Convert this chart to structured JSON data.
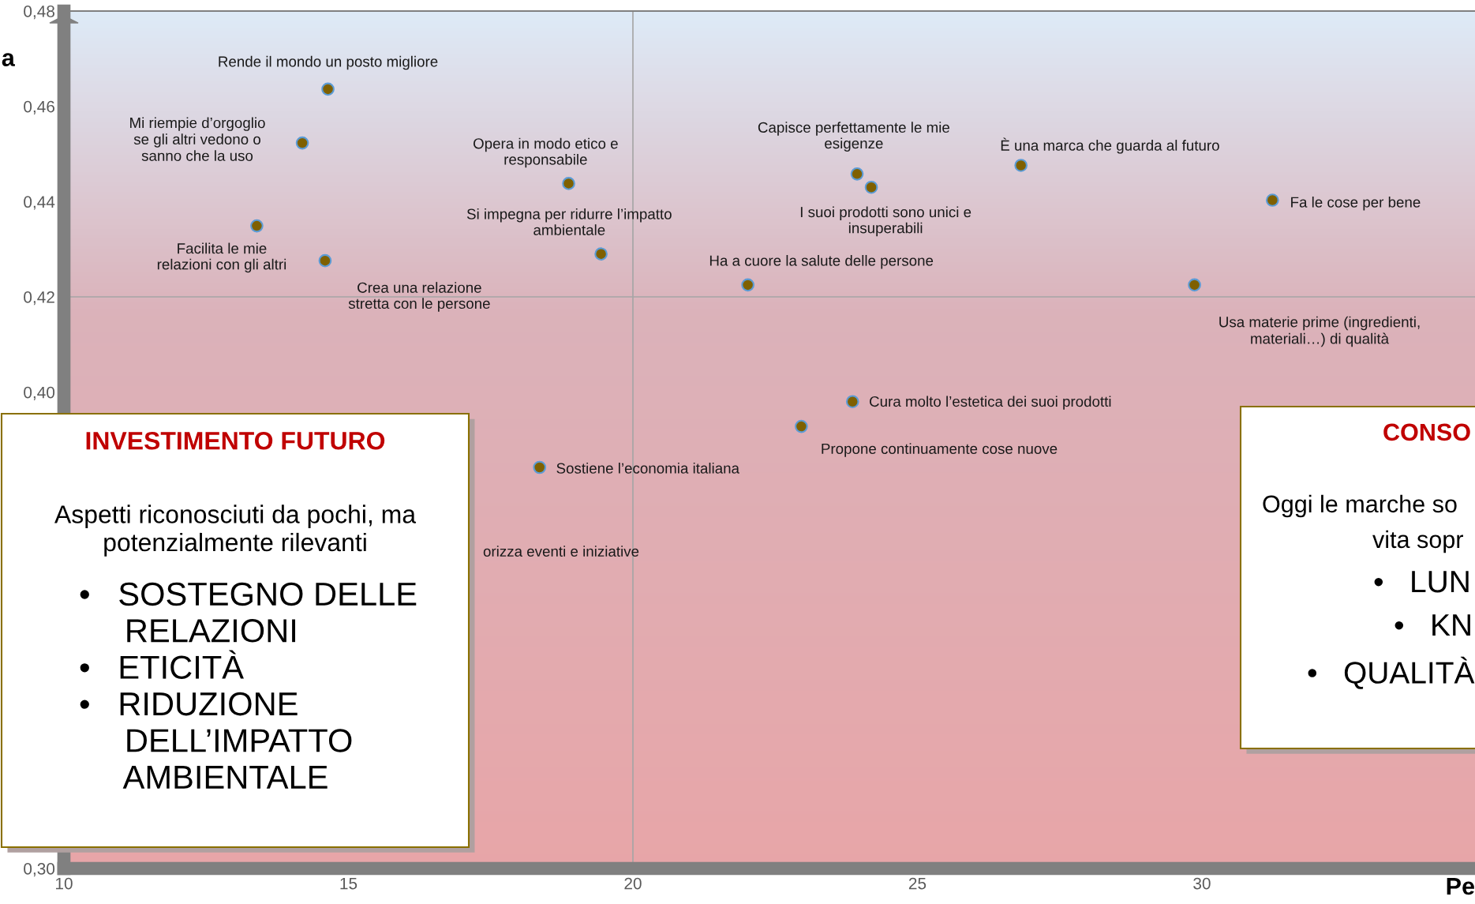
{
  "chart_data": {
    "type": "scatter",
    "xlabel": "Pe",
    "ylabel": "a",
    "xlim": [
      10,
      34.8
    ],
    "ylim": [
      0.3,
      0.48
    ],
    "xticks": [
      10,
      15,
      20,
      25,
      30
    ],
    "yticks": [
      {
        "value": 0.3,
        "label": "0,30"
      },
      {
        "value": 0.4,
        "label": "0,40"
      },
      {
        "value": 0.42,
        "label": "0,42"
      },
      {
        "value": 0.44,
        "label": "0,44"
      },
      {
        "value": 0.46,
        "label": "0,46"
      },
      {
        "value": 0.48,
        "label": "0,48"
      }
    ],
    "grid": false,
    "legend": false,
    "marker": "circle",
    "ref_lines": [
      {
        "axis": "x",
        "value": 20,
        "color": "#a6a6a6"
      },
      {
        "axis": "y",
        "value": 0.42,
        "color": "#a6a6a6"
      }
    ],
    "series": [
      {
        "color": "#7f6000",
        "x": [
          14.64,
          14.19,
          13.39,
          14.59,
          18.87,
          19.44,
          23.94,
          24.19,
          26.82,
          31.24,
          22.02,
          29.87,
          23.86,
          22.96,
          18.36
        ],
        "values": [
          0.4636,
          0.4523,
          0.4349,
          0.4276,
          0.4438,
          0.429,
          0.4458,
          0.443,
          0.4476,
          0.4403,
          0.4225,
          0.4225,
          0.398,
          0.3928,
          0.3842
        ]
      }
    ],
    "annotations": [
      "INVESTIMENTO FUTURO",
      "Aspetti riconosciuti da pochi, ma\npotenzialmente rilevanti",
      "•   SOSTEGNO DELLE\n     RELAZIONI\n•   ETICITÀ\n•   RIDUZIONE\n     DELL’IMPATTO\n     AMBIENTALE",
      "CONSO",
      "Oggi le marche so",
      "vita sopr",
      "•   LUN",
      "•   KN",
      "•   QUALITÀ",
      "orizza eventi e iniziative",
      "Mi riempie d’orgoglio\nse gli altri vedono o\nsanno che la uso",
      "Usa materie prime (ingredienti,\nmateriali…) di qualità",
      "Propone continuamente cose nuove",
      {
        "text": "Rende il mondo un posto migliore",
        "x": 14.64,
        "y": 0.4636
      },
      {
        "text": "Facilita le mie\nrelazioni con gli altri",
        "x": 13.39,
        "y": 0.4349
      },
      {
        "text": "Crea una relazione\nstretta con le persone",
        "x": 14.59,
        "y": 0.4276
      },
      {
        "text": "Opera in modo etico e\nresponsabile",
        "x": 18.87,
        "y": 0.4438
      },
      {
        "text": "Si impegna per ridurre l’impatto\nambientale",
        "x": 19.44,
        "y": 0.429
      },
      {
        "text": "Capisce perfettamente le mie\nesigenze",
        "x": 23.94,
        "y": 0.4458
      },
      {
        "text": "I suoi prodotti sono unici e\ninsuperabili",
        "x": 24.19,
        "y": 0.443
      },
      {
        "text": "È una marca che guarda al futuro",
        "x": 26.82,
        "y": 0.4476
      },
      {
        "text": "Fa le cose per bene",
        "x": 31.24,
        "y": 0.4403
      },
      {
        "text": "Ha a cuore la salute delle persone",
        "x": 22.02,
        "y": 0.4225
      },
      {
        "text": "Cura molto l’estetica dei suoi prodotti",
        "x": 23.86,
        "y": 0.398
      },
      {
        "text": "Sostiene l’economia italiana",
        "x": 18.36,
        "y": 0.3842
      }
    ]
  }
}
